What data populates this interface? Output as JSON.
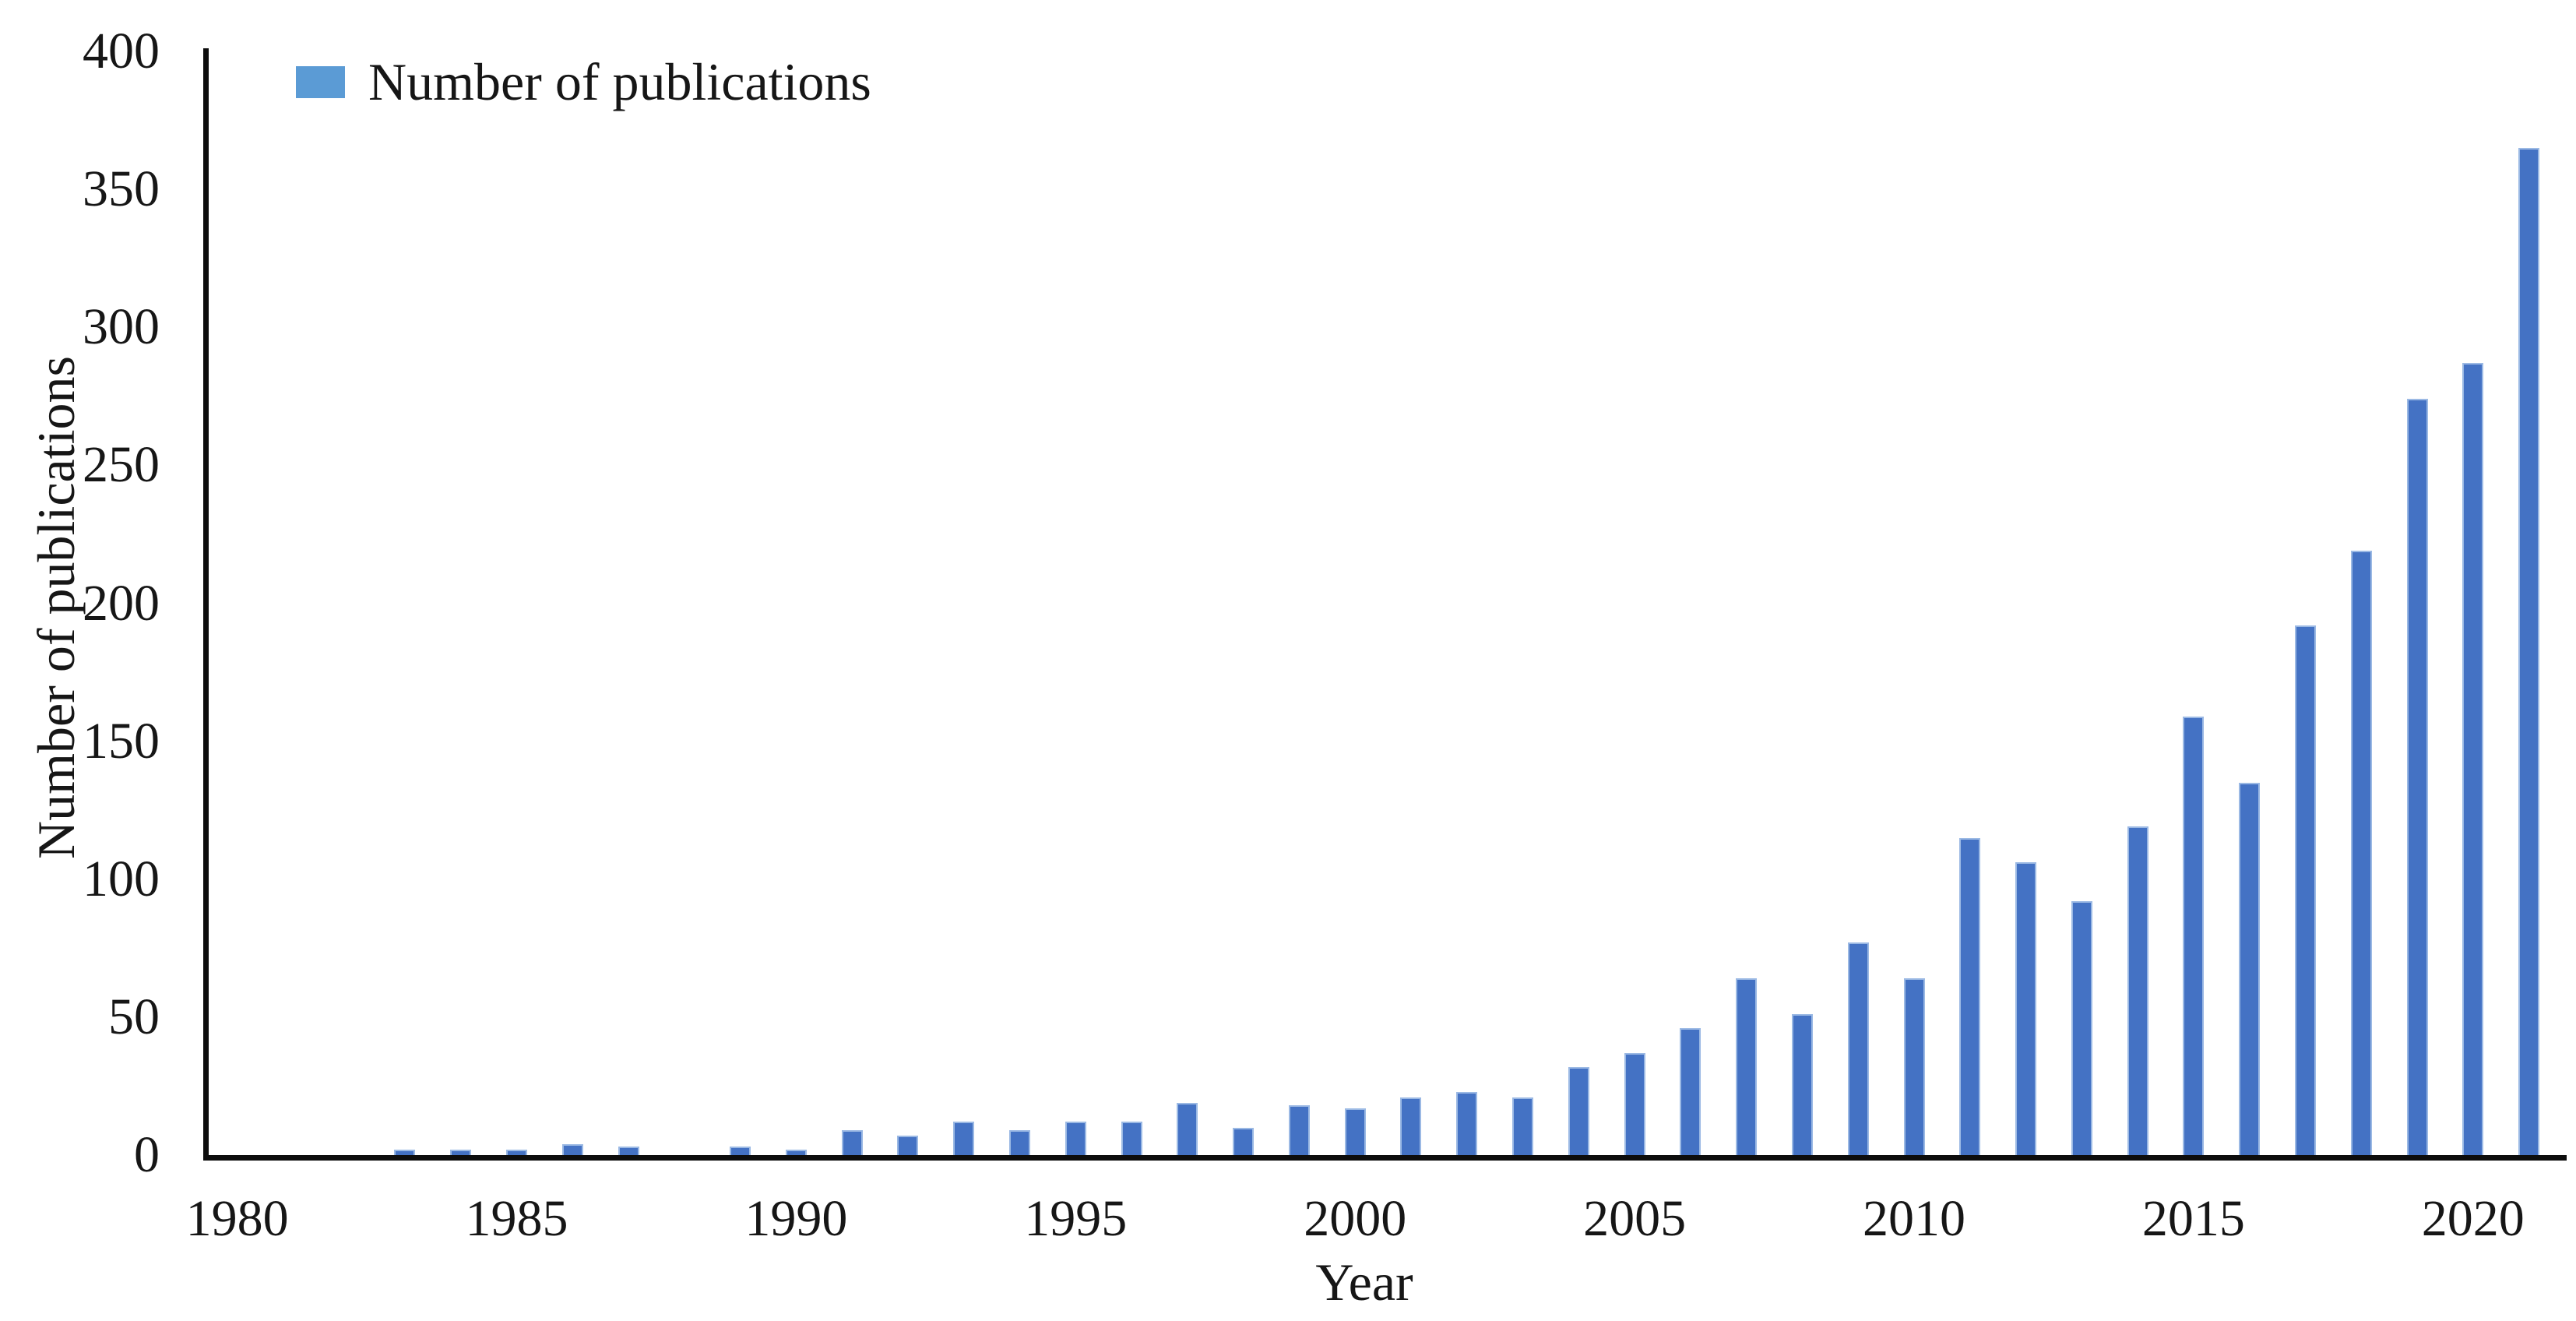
{
  "figure": {
    "background_color": "#ffffff",
    "text_color": "#161616",
    "axis_line_color": "#0d0d0d",
    "legend": {
      "label": "Number of publications",
      "swatch_color": "#5b9bd5",
      "position": "top-left"
    },
    "icons": {}
  },
  "chart_data": {
    "type": "bar",
    "title": "",
    "xlabel": "Year",
    "ylabel": "Number of publications",
    "series_name": "Number of publications",
    "bar_fill_color": "#4472c4",
    "bar_border_color": "#9bb9e4",
    "grid": false,
    "legend_position": "top-left",
    "xlim": [
      1979.5,
      2021.5
    ],
    "ylim": [
      0,
      400
    ],
    "x": [
      1980,
      1981,
      1982,
      1983,
      1984,
      1985,
      1986,
      1987,
      1988,
      1989,
      1990,
      1991,
      1992,
      1993,
      1994,
      1995,
      1996,
      1997,
      1998,
      1999,
      2000,
      2001,
      2002,
      2003,
      2004,
      2005,
      2006,
      2007,
      2008,
      2009,
      2010,
      2011,
      2012,
      2013,
      2014,
      2015,
      2016,
      2017,
      2018,
      2019,
      2020,
      2021
    ],
    "values": [
      0,
      0,
      0,
      2,
      2,
      2,
      4,
      3,
      0,
      3,
      2,
      9,
      7,
      12,
      9,
      12,
      12,
      19,
      10,
      18,
      17,
      21,
      23,
      21,
      32,
      37,
      46,
      64,
      51,
      77,
      64,
      115,
      106,
      92,
      119,
      159,
      135,
      192,
      219,
      274,
      287,
      365
    ],
    "x_tick_labels": [
      "1980",
      "1985",
      "1990",
      "1995",
      "2000",
      "2005",
      "2010",
      "2015",
      "2020"
    ],
    "y_ticks": [
      0,
      50,
      100,
      150,
      200,
      250,
      300,
      350,
      400
    ],
    "y_tick_labels": [
      "0",
      "50",
      "100",
      "150",
      "200",
      "250",
      "300",
      "350",
      "400"
    ]
  }
}
